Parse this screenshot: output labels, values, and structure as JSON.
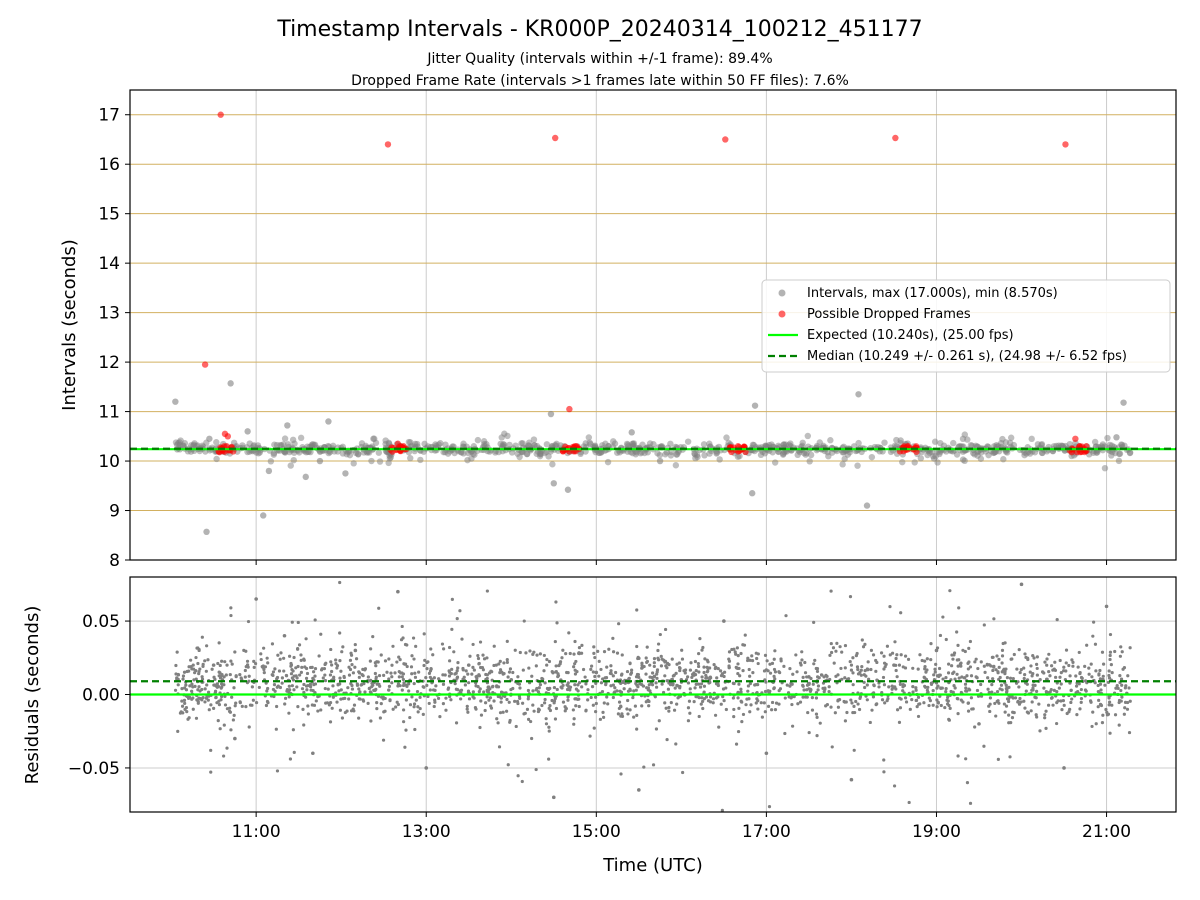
{
  "figure": {
    "title": "Timestamp Intervals - KR000P_20240314_100212_451177",
    "subtitle_1": "Jitter Quality (intervals within +/-1 frame): 89.4%",
    "subtitle_2": "Dropped Frame Rate (intervals >1 frames late within 50 FF files): 7.6%"
  },
  "colors": {
    "intervals": "#808080",
    "dropped": "#ff0000",
    "expected": "#00ff00",
    "median": "#008000",
    "ref_line": "#d2b060",
    "grid": "#cccccc"
  },
  "chart_data": [
    {
      "type": "scatter",
      "ylabel": "Intervals (seconds)",
      "ylim": [
        8,
        17.5
      ],
      "yticks": [
        "8",
        "9",
        "10",
        "11",
        "12",
        "13",
        "14",
        "15",
        "16",
        "17"
      ],
      "xlim": [
        "09:31",
        "21:49"
      ],
      "xtick_values": [
        "11:00",
        "13:00",
        "15:00",
        "17:00",
        "19:00",
        "21:00"
      ],
      "horizontal_reference_lines": [
        9,
        10,
        11,
        12,
        13,
        14,
        15,
        16,
        17
      ],
      "legend_position": "center-right",
      "legend": [
        "Intervals, max (17.000s), min (8.570s)",
        "Possible Dropped Frames",
        "Expected (10.240s), (25.00 fps)",
        "Median (10.249 +/- 0.261 s), (24.98 +/- 6.52 fps)"
      ],
      "expected_value": 10.24,
      "median_value": 10.249,
      "series": [
        {
          "name": "Intervals, max (17.000s), min (8.570s)",
          "x": [
            "10:03",
            "10:25",
            "10:42",
            "11:05",
            "11:09",
            "11:35",
            "11:51",
            "12:03",
            "14:28",
            "14:30",
            "14:40",
            "15:25",
            "15:45",
            "16:50",
            "16:52",
            "17:12",
            "18:05",
            "18:11",
            "21:07",
            "21:12",
            "10:27",
            "10:54",
            "11:22",
            "11:45"
          ],
          "y": [
            11.2,
            8.57,
            11.57,
            8.9,
            9.8,
            9.68,
            10.8,
            9.75,
            10.95,
            9.55,
            9.42,
            10.58,
            10.0,
            9.35,
            11.12,
            10.15,
            11.35,
            9.1,
            10.48,
            11.18,
            10.45,
            10.6,
            10.72,
            10.0
          ]
        },
        {
          "name": "Possible Dropped Frames",
          "x": [
            "10:24",
            "10:35",
            "12:33",
            "14:31",
            "14:41",
            "16:31",
            "18:31",
            "20:31",
            "20:38",
            "10:38",
            "10:40",
            "12:40",
            "12:44",
            "14:45",
            "16:40",
            "16:44",
            "18:40",
            "18:44",
            "20:41"
          ],
          "y": [
            11.95,
            17.0,
            16.4,
            16.53,
            11.05,
            16.5,
            16.53,
            16.4,
            10.45,
            10.55,
            10.5,
            10.35,
            10.3,
            10.3,
            10.3,
            10.25,
            10.3,
            10.25,
            10.3
          ]
        }
      ]
    },
    {
      "type": "scatter",
      "xlabel": "Time (UTC)",
      "ylabel": "Residuals (seconds)",
      "ylim": [
        -0.08,
        0.08
      ],
      "yticks": [
        "−0.05",
        "0.00",
        "0.05"
      ],
      "xtick_labels": [
        "11:00",
        "13:00",
        "15:00",
        "17:00",
        "19:00",
        "21:00"
      ],
      "expected_value": 0.0,
      "median_value": 0.009,
      "series": [
        {
          "name": "Residuals",
          "x": [
            "10:30",
            "10:45",
            "11:00",
            "11:20",
            "11:40",
            "12:10",
            "12:40",
            "13:00",
            "13:30",
            "14:00",
            "14:30",
            "15:00",
            "15:30",
            "16:00",
            "16:30",
            "17:00",
            "17:30",
            "18:00",
            "18:30",
            "19:00",
            "19:30",
            "20:00",
            "20:30",
            "21:00"
          ],
          "y": [
            0.02,
            -0.03,
            0.065,
            0.04,
            -0.04,
            0.03,
            0.07,
            -0.05,
            0.02,
            0.01,
            -0.07,
            0.015,
            -0.065,
            0.01,
            0.05,
            -0.04,
            0.012,
            -0.058,
            0.02,
            0.03,
            -0.02,
            0.075,
            -0.05,
            0.06
          ]
        }
      ]
    }
  ]
}
